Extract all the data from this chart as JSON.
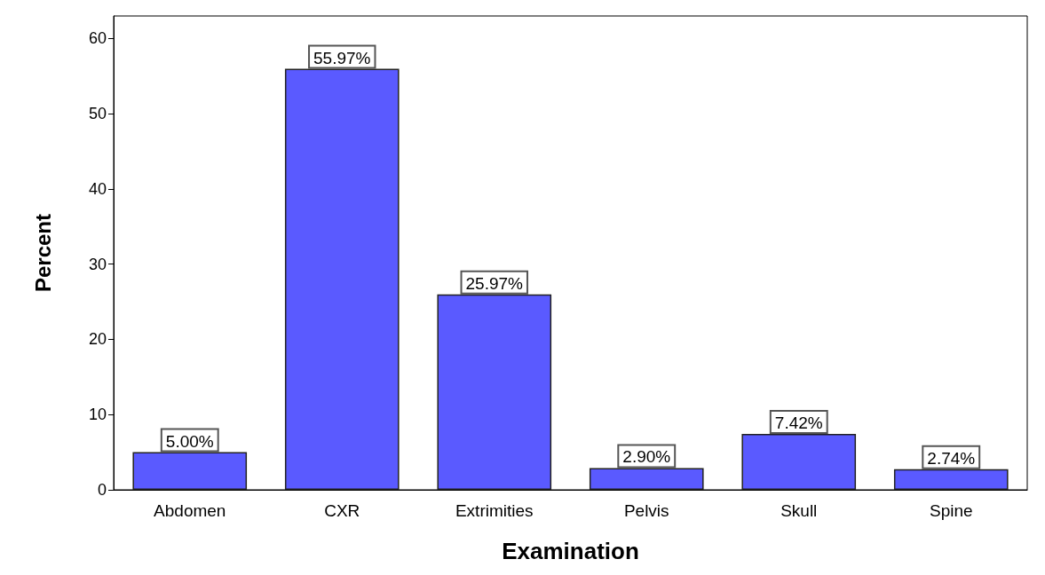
{
  "chart_data": {
    "type": "bar",
    "xlabel": "Examination",
    "ylabel": "Percent",
    "categories": [
      "Abdomen",
      "CXR",
      "Extrimities",
      "Pelvis",
      "Skull",
      "Spine"
    ],
    "values": [
      5.0,
      55.97,
      25.97,
      2.9,
      7.42,
      2.74
    ],
    "value_labels": [
      "5.00%",
      "55.97%",
      "25.97%",
      "2.90%",
      "7.42%",
      "2.74%"
    ],
    "color": "#5a5aff",
    "ylim": [
      0,
      63
    ],
    "yticks": [
      0,
      10,
      20,
      30,
      40,
      50,
      60
    ],
    "grid": false
  }
}
